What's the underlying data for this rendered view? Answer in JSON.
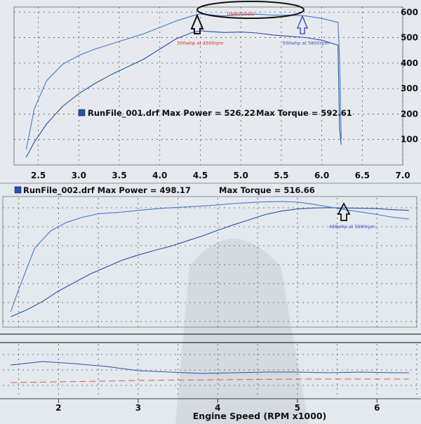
{
  "chart_data": [
    {
      "type": "line",
      "run_label": "RunFile_001.drf Max Power = 526.22",
      "torque_label": "Max Torque = 592.61",
      "x_ticks": [
        "2.5",
        "3.0",
        "3.5",
        "4.0",
        "4.5",
        "5.0",
        "5.5",
        "6.0",
        "6.5",
        "7.0"
      ],
      "y_ticks": [
        "100",
        "200",
        "300",
        "400",
        "500",
        "600"
      ],
      "xlim": [
        2.2,
        7.0
      ],
      "ylim": [
        0,
        620
      ],
      "annotations": [
        {
          "text": "500whp at 4500rpm",
          "x": 4.5,
          "y": 500,
          "color": "#e02020"
        },
        {
          "text": "DANGGGGG",
          "x": 5.0,
          "y": 603,
          "color": "#e02020"
        },
        {
          "text": "500whp at 5800rpm",
          "x": 5.8,
          "y": 500,
          "color": "#3a46c8"
        }
      ],
      "series": [
        {
          "x": [
            2.35,
            2.45,
            2.6,
            2.8,
            3.0,
            3.2,
            3.4,
            3.6,
            3.8,
            4.0,
            4.2,
            4.4,
            4.5,
            4.6,
            4.8,
            5.0,
            5.2,
            5.4,
            5.6,
            5.8,
            6.0,
            6.1,
            6.2,
            6.22,
            6.24
          ],
          "y": [
            30,
            90,
            160,
            230,
            280,
            320,
            355,
            385,
            415,
            455,
            495,
            520,
            527,
            524,
            520,
            522,
            518,
            510,
            505,
            500,
            490,
            480,
            470,
            140,
            80
          ]
        },
        {
          "x": [
            2.35,
            2.45,
            2.6,
            2.8,
            3.0,
            3.2,
            3.4,
            3.6,
            3.8,
            4.0,
            4.2,
            4.4,
            4.5,
            4.6,
            4.8,
            5.0,
            5.2,
            5.4,
            5.6,
            5.8,
            6.0,
            6.2,
            6.22,
            6.24
          ],
          "y": [
            60,
            220,
            330,
            395,
            430,
            455,
            475,
            495,
            515,
            540,
            565,
            585,
            593,
            590,
            585,
            590,
            592,
            588,
            588,
            585,
            575,
            560,
            420,
            100
          ]
        }
      ]
    },
    {
      "type": "line",
      "run_label": "RunFile_002.drf Max Power = 498.17",
      "torque_label": "Max Torque = 516.66",
      "x_ticks": [
        "2",
        "3",
        "4",
        "5",
        "6"
      ],
      "xlim": [
        1.3,
        6.5
      ],
      "xlabel": "Engine Speed (RPM x1000)",
      "annotations": [
        {
          "text": "498whp at 5900rpm",
          "x": 5.6,
          "y": 490,
          "color": "#3a46c8"
        }
      ],
      "series": [
        {
          "x": [
            1.4,
            1.6,
            1.8,
            2.0,
            2.2,
            2.4,
            2.6,
            2.8,
            3.0,
            3.2,
            3.4,
            3.6,
            3.8,
            4.0,
            4.2,
            4.4,
            4.6,
            4.8,
            5.0,
            5.2,
            5.4,
            5.6,
            5.8,
            6.0,
            6.2,
            6.4
          ],
          "y": [
            180,
            200,
            225,
            255,
            280,
            305,
            325,
            345,
            360,
            373,
            385,
            400,
            415,
            432,
            448,
            463,
            478,
            488,
            494,
            497,
            498,
            497,
            496,
            495,
            492,
            490
          ]
        },
        {
          "x": [
            1.4,
            1.5,
            1.7,
            1.9,
            2.1,
            2.3,
            2.5,
            2.8,
            3.0,
            3.3,
            3.6,
            3.9,
            4.2,
            4.5,
            4.8,
            5.0,
            5.2,
            5.4,
            5.6,
            5.8,
            6.0,
            6.2,
            6.4
          ],
          "y": [
            195,
            260,
            380,
            430,
            455,
            470,
            480,
            485,
            490,
            496,
            500,
            504,
            510,
            514,
            516,
            514,
            508,
            500,
            492,
            485,
            478,
            470,
            465
          ]
        },
        {
          "x": [
            1.4,
            1.8,
            2.2,
            2.6,
            3.0,
            3.4,
            3.8,
            4.2,
            4.6,
            5.0,
            5.4,
            5.8,
            6.2,
            6.4
          ],
          "y": [
            14,
            14.5,
            14.2,
            13.8,
            13.2,
            13.0,
            12.8,
            12.9,
            13.0,
            13.0,
            12.9,
            13.0,
            12.9,
            12.9
          ]
        },
        {
          "x": [
            1.4,
            2.0,
            3.0,
            4.0,
            5.0,
            6.0,
            6.4
          ],
          "y": [
            11.5,
            11.6,
            11.8,
            11.9,
            12.0,
            12.0,
            12.0
          ]
        }
      ]
    }
  ],
  "colors": {
    "line": "#2a4fa8",
    "line_light": "#4a78c8",
    "afr_target": "#d06060",
    "grid": "#555555",
    "bg_top": "#e6eaee",
    "bg_bottom": "#e4e9ee"
  }
}
